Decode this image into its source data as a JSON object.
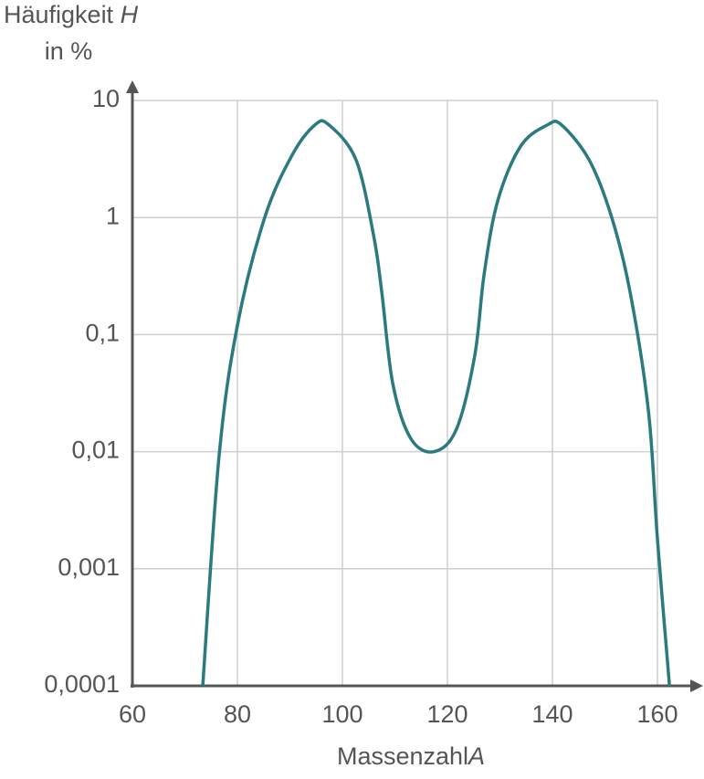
{
  "chart_data": {
    "type": "line",
    "ylabel": {
      "text": "Häufigkeit",
      "symbol": "H",
      "unit": "in %"
    },
    "xlabel": {
      "text": "Massenzahl",
      "symbol": "A"
    },
    "x": [
      73.4,
      76.5,
      80,
      85.2,
      90.4,
      94.8,
      97.4,
      102.6,
      106,
      107.5,
      109.6,
      113,
      117.4,
      121.7,
      125.2,
      127,
      129.6,
      134,
      139.1,
      141.7,
      147,
      151.3,
      154.8,
      158.3,
      160,
      162.3
    ],
    "values": [
      0.0001,
      0.0091,
      0.12,
      1,
      3.4,
      6.2,
      6.2,
      3.1,
      0.68,
      0.23,
      0.038,
      0.013,
      0.01,
      0.0155,
      0.066,
      0.33,
      1.4,
      4.1,
      6.2,
      6.2,
      3.1,
      1,
      0.23,
      0.022,
      0.0018,
      0.0001
    ],
    "color": "#2b7a80",
    "xlim": [
      60,
      160
    ],
    "xticks": [
      60,
      80,
      100,
      120,
      140,
      160
    ],
    "ylim": [
      0.0001,
      10
    ],
    "yticks": [
      {
        "value": 0.0001,
        "label": "0,0001"
      },
      {
        "value": 0.001,
        "label": "0,001"
      },
      {
        "value": 0.01,
        "label": "0,01"
      },
      {
        "value": 0.1,
        "label": "0,1"
      },
      1,
      10
    ],
    "log_y": true,
    "grid": true
  }
}
